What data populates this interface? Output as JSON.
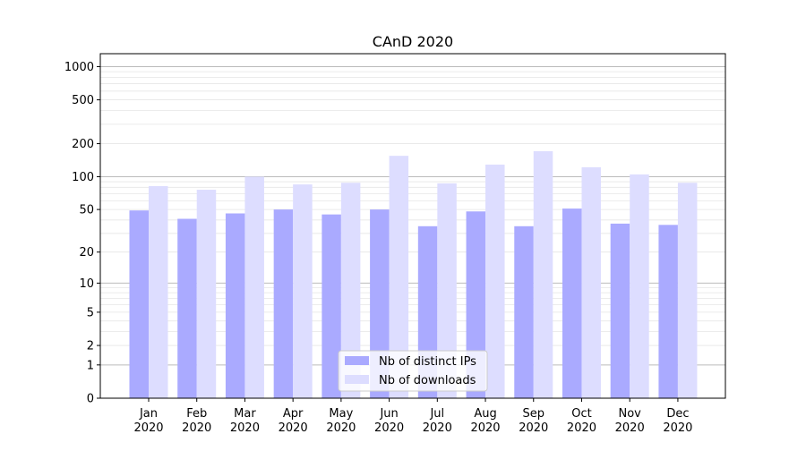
{
  "chart_data": {
    "type": "bar",
    "title": "CAnD 2020",
    "xlabel": "",
    "ylabel": "",
    "yscale": "log10(1+y)",
    "ylim": [
      0,
      1300
    ],
    "yticks": [
      0,
      1,
      2,
      5,
      10,
      20,
      50,
      100,
      200,
      500,
      1000
    ],
    "ytick_labels": [
      "0",
      "1",
      "2",
      "5",
      "10",
      "20",
      "50",
      "100",
      "200",
      "500",
      "1000"
    ],
    "categories": [
      "Jan\n2020",
      "Feb\n2020",
      "Mar\n2020",
      "Apr\n2020",
      "May\n2020",
      "Jun\n2020",
      "Jul\n2020",
      "Aug\n2020",
      "Sep\n2020",
      "Oct\n2020",
      "Nov\n2020",
      "Dec\n2020"
    ],
    "series": [
      {
        "name": "Nb of distinct IPs",
        "color": "#aaaaff",
        "values": [
          49,
          41,
          46,
          50,
          45,
          50,
          35,
          48,
          35,
          51,
          37,
          36
        ]
      },
      {
        "name": "Nb of downloads",
        "color": "#ddddff",
        "values": [
          82,
          76,
          100,
          85,
          88,
          155,
          87,
          129,
          171,
          122,
          105,
          88
        ]
      }
    ],
    "grid": true,
    "legend_position": "lower-center"
  }
}
